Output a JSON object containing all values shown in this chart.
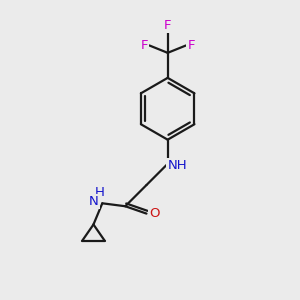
{
  "background_color": "#ebebeb",
  "bond_color": "#1a1a1a",
  "bond_width": 1.6,
  "atom_colors": {
    "N": "#1414cc",
    "O": "#cc1414",
    "F": "#cc00cc"
  },
  "fontsize": 9.5
}
